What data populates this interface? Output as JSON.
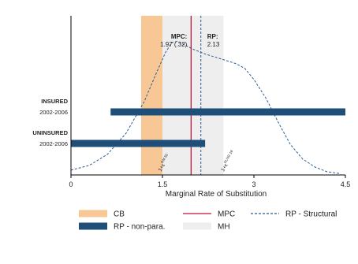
{
  "chart_data": {
    "type": "bar",
    "xlabel": "Marginal Rate of Substitution",
    "xlim": [
      0,
      4.5
    ],
    "xticks": [
      0,
      1.5,
      3,
      4.5
    ],
    "xtick_labels": [
      "0",
      "1.5",
      "3",
      "4.5"
    ],
    "groups": [
      {
        "label": "INSURED",
        "sublabel": "2002-2006",
        "rp_nonpara": [
          0.65,
          4.5
        ]
      },
      {
        "label": "UNINSURED",
        "sublabel": "2002-2006",
        "rp_nonpara": [
          0,
          2.2
        ]
      }
    ],
    "cb_band": [
      1.15,
      1.5
    ],
    "mh_band": [
      1.5,
      2.5
    ],
    "mpc": {
      "value": 1.97,
      "label_line1": "MPC:",
      "label_line2": "1.97 (.32)",
      "color": "#c0143c"
    },
    "rp_structural": {
      "value": 2.13,
      "label_line1": "RP:",
      "label_line2": "2.13",
      "color": "#2f5c8f"
    },
    "density_curve": {
      "x": [
        0,
        0.3,
        0.6,
        0.9,
        1.2,
        1.4,
        1.55,
        1.65,
        1.75,
        1.85,
        2.0,
        2.2,
        2.45,
        2.7,
        2.85,
        3.0,
        3.2,
        3.4,
        3.6,
        3.8,
        4.0,
        4.2,
        4.4
      ],
      "y": [
        0.03,
        0.06,
        0.13,
        0.26,
        0.46,
        0.64,
        0.77,
        0.83,
        0.84,
        0.82,
        0.79,
        0.76,
        0.73,
        0.7,
        0.67,
        0.6,
        0.48,
        0.33,
        0.19,
        0.1,
        0.05,
        0.02,
        0.01
      ]
    },
    "annotations": [
      {
        "text": "1+ε",
        "sup": "RM 50",
        "x": 1.5
      },
      {
        "text": "1+ε",
        "sup": "KLNG 18",
        "x": 2.53
      }
    ],
    "legend": [
      {
        "label": "CB",
        "kind": "bar",
        "color": "#f7c896"
      },
      {
        "label": "MPC",
        "kind": "line",
        "color": "#c0143c"
      },
      {
        "label": "RP - Structural",
        "kind": "dash",
        "color": "#2f5c8f"
      },
      {
        "label": "RP - non-para.",
        "kind": "bar",
        "color": "#1f4e79"
      },
      {
        "label": "MH",
        "kind": "bar",
        "color": "#eeeeee"
      }
    ]
  },
  "colors": {
    "cb": "#f7c896",
    "mh": "#eeeeee",
    "mpc": "#c0143c",
    "rp_structural": "#2f5c8f",
    "rp_nonpara": "#1f4e79",
    "axis": "#000000"
  }
}
